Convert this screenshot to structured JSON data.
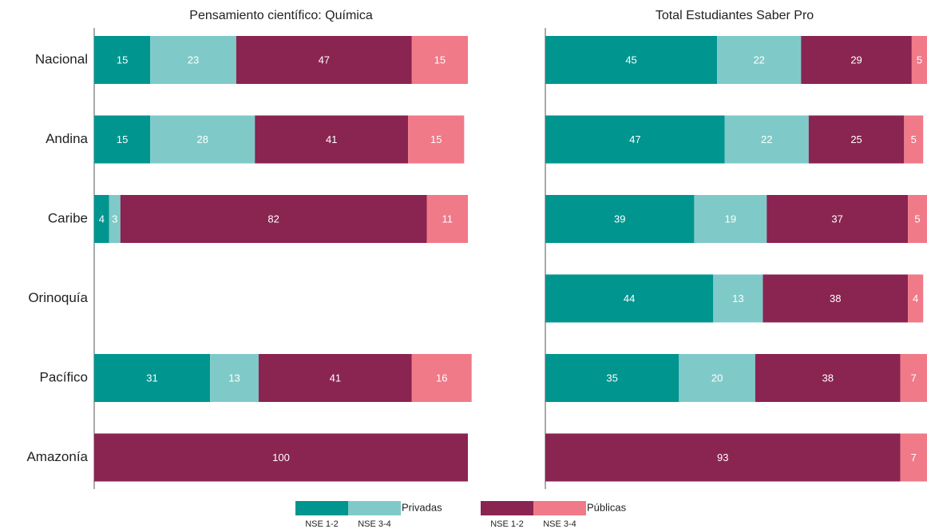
{
  "chart_data": [
    {
      "type": "bar",
      "orientation": "horizontal",
      "stacked": true,
      "title": "Pensamiento científico: Química",
      "categories": [
        "Nacional",
        "Andina",
        "Caribe",
        "Orinoquía",
        "Pacífico",
        "Amazonía"
      ],
      "xlim": [
        0,
        100
      ],
      "series": [
        {
          "name": "NSE 1-2",
          "group": "Privadas",
          "color": "#00958f",
          "values": [
            15,
            15,
            4,
            null,
            31,
            null
          ]
        },
        {
          "name": "NSE 3-4",
          "group": "Privadas",
          "color": "#7fcac8",
          "values": [
            23,
            28,
            3,
            null,
            13,
            null
          ]
        },
        {
          "name": "NSE 1-2",
          "group": "Públicas",
          "color": "#8a2451",
          "values": [
            47,
            41,
            82,
            null,
            41,
            100
          ]
        },
        {
          "name": "NSE 3-4",
          "group": "Públicas",
          "color": "#f07a88",
          "values": [
            15,
            15,
            11,
            null,
            16,
            null
          ]
        }
      ]
    },
    {
      "type": "bar",
      "orientation": "horizontal",
      "stacked": true,
      "title": "Total Estudiantes Saber Pro",
      "xlim": [
        0,
        100
      ],
      "series": [
        {
          "color": "#00958f",
          "values": [
            45,
            47,
            39,
            44,
            35,
            null
          ]
        },
        {
          "color": "#7fcac8",
          "values": [
            22,
            22,
            19,
            13,
            20,
            null
          ]
        },
        {
          "color": "#8a2451",
          "values": [
            29,
            25,
            37,
            38,
            38,
            93
          ]
        },
        {
          "color": "#f07a88",
          "values": [
            5,
            5,
            5,
            4,
            7,
            7
          ]
        }
      ]
    }
  ]
}
